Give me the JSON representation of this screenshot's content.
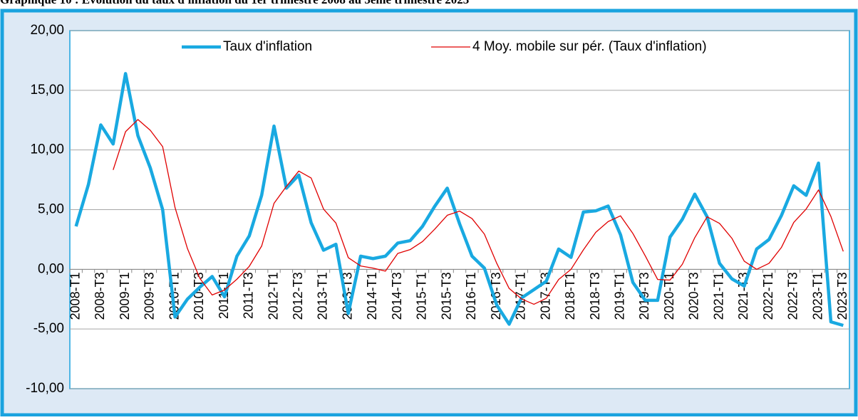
{
  "chart_data": {
    "type": "line",
    "title": "Graphique 10 : Evolution du taux d'inflation du 1er trimestre 2008 au 3ème trimestre 2023",
    "categories": [
      "2008-T1",
      null,
      "2008-T3",
      null,
      "2009-T1",
      null,
      "2009-T3",
      null,
      "2010-T1",
      null,
      "2010-T3",
      null,
      "2011-T1",
      null,
      "2011-T3",
      null,
      "2012-T1",
      null,
      "2012-T3",
      null,
      "2013-T1",
      null,
      "2013-T3",
      null,
      "2014-T1",
      null,
      "2014-T3",
      null,
      "2015-T1",
      null,
      "2015-T3",
      null,
      "2016-T1",
      null,
      "2016-T3",
      null,
      "2017-T1",
      null,
      "2017-T3",
      null,
      "2018-T1",
      null,
      "2018-T3",
      null,
      "2019-T1",
      null,
      "2019-T3",
      null,
      "2020-T1",
      null,
      "2020-T3",
      null,
      "2021-T1",
      null,
      "2021-T3",
      null,
      "2022-T1",
      null,
      "2022-T3",
      null,
      "2023-T1",
      null,
      "2023-T3"
    ],
    "series": [
      {
        "name": "Taux d'inflation",
        "color": "#19a9e1",
        "values": [
          3.6,
          7.1,
          12.1,
          10.5,
          16.4,
          11.2,
          8.5,
          5.0,
          -4.0,
          -2.5,
          -1.5,
          -0.6,
          -2.3,
          1.1,
          2.8,
          6.2,
          12.0,
          6.8,
          7.9,
          3.9,
          1.6,
          2.1,
          -3.7,
          1.1,
          0.9,
          1.1,
          2.2,
          2.4,
          3.6,
          5.3,
          6.8,
          3.8,
          1.1,
          0.1,
          -3.0,
          -4.6,
          -2.4,
          -1.7,
          -1.0,
          1.7,
          1.0,
          4.8,
          4.9,
          5.3,
          2.9,
          -1.1,
          -2.6,
          -2.6,
          2.7,
          4.2,
          6.3,
          4.4,
          0.5,
          -0.8,
          -1.4,
          1.7,
          2.5,
          4.5,
          7.0,
          6.2,
          8.9,
          -4.4,
          -4.7
        ]
      },
      {
        "name": "4 Moy. mobile sur pér. (Taux d'inflation)",
        "color": "#e00000",
        "values": [
          null,
          null,
          null,
          8.33,
          11.53,
          12.55,
          11.65,
          10.28,
          5.18,
          1.75,
          -0.75,
          -2.15,
          -1.73,
          -0.83,
          0.25,
          1.95,
          5.53,
          6.95,
          8.23,
          7.65,
          5.05,
          3.88,
          0.98,
          0.28,
          0.1,
          -0.15,
          1.33,
          1.65,
          2.33,
          3.38,
          4.53,
          4.88,
          4.25,
          2.95,
          0.5,
          -1.6,
          -2.48,
          -2.93,
          -2.43,
          -0.85,
          0,
          1.63,
          3.1,
          4.0,
          4.48,
          3.0,
          1.13,
          -0.85,
          -0.9,
          0.43,
          2.65,
          4.4,
          3.85,
          2.6,
          0.68,
          0,
          0.5,
          1.83,
          3.93,
          5.05,
          6.65,
          4.43,
          1.5
        ]
      }
    ],
    "ylim": [
      -10,
      20
    ],
    "yticks": [
      {
        "value": -10,
        "label": "-10,00"
      },
      {
        "value": -5,
        "label": "-5,00"
      },
      {
        "value": 0,
        "label": "0,00"
      },
      {
        "value": 5,
        "label": "5,00"
      },
      {
        "value": 10,
        "label": "10,00"
      },
      {
        "value": 15,
        "label": "15,00"
      },
      {
        "value": 20,
        "label": "20,00"
      }
    ],
    "grid": true
  }
}
